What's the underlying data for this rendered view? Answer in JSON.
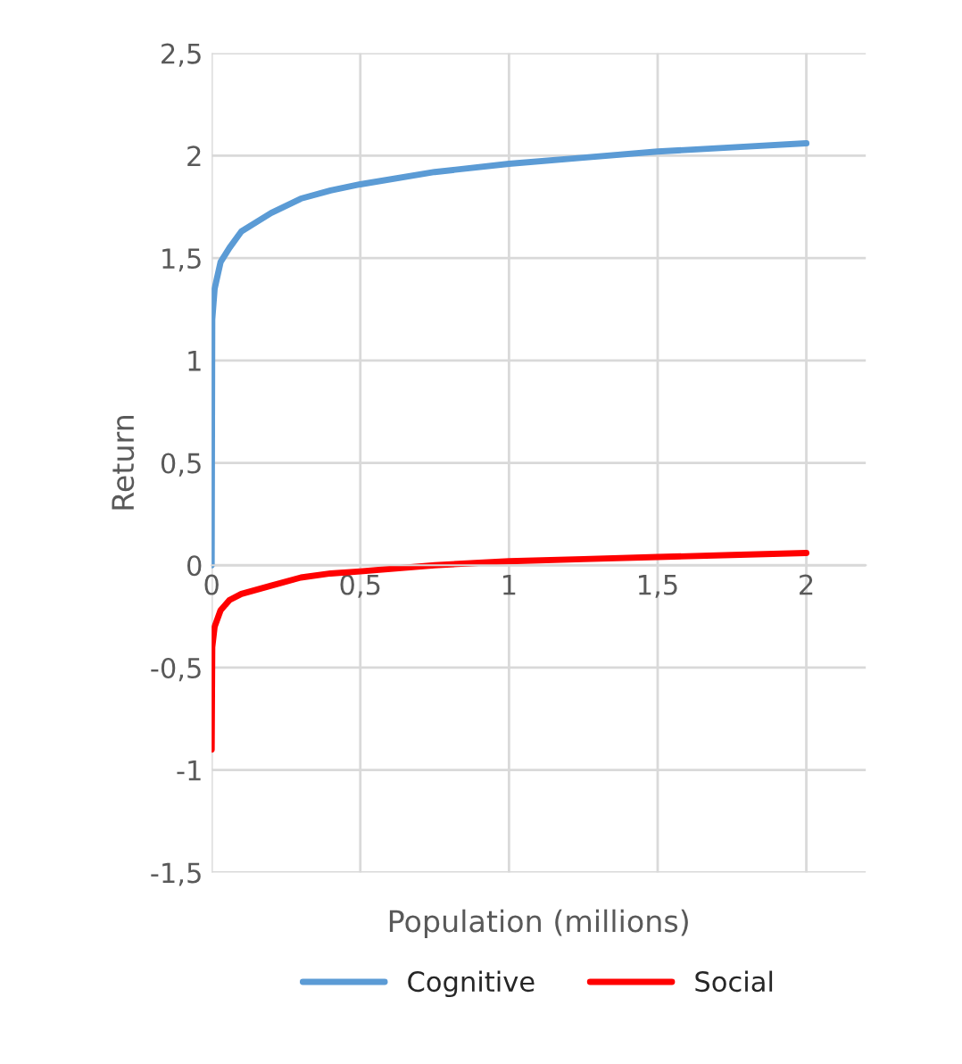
{
  "chart_data": {
    "type": "line",
    "xlabel": "Population (millions)",
    "ylabel": "Return",
    "xlim": [
      0,
      2.2
    ],
    "ylim": [
      -1.5,
      2.5
    ],
    "xticks": [
      {
        "value": 0,
        "label": "0"
      },
      {
        "value": 0.5,
        "label": "0,5"
      },
      {
        "value": 1,
        "label": "1"
      },
      {
        "value": 1.5,
        "label": "1,5"
      },
      {
        "value": 2,
        "label": "2"
      }
    ],
    "yticks": [
      {
        "value": -1.5,
        "label": "-1,5"
      },
      {
        "value": -1,
        "label": "-1"
      },
      {
        "value": -0.5,
        "label": "-0,5"
      },
      {
        "value": 0,
        "label": "0"
      },
      {
        "value": 0.5,
        "label": "0,5"
      },
      {
        "value": 1,
        "label": "1"
      },
      {
        "value": 1.5,
        "label": "1,5"
      },
      {
        "value": 2,
        "label": "2"
      },
      {
        "value": 2.5,
        "label": "2,5"
      }
    ],
    "grid": true,
    "legend": "bottom",
    "marker": "none",
    "line_style": "solid",
    "x": [
      0,
      0.002,
      0.01,
      0.03,
      0.06,
      0.1,
      0.2,
      0.3,
      0.4,
      0.5,
      0.75,
      1,
      1.25,
      1.5,
      1.75,
      2
    ],
    "series": [
      {
        "name": "Cognitive",
        "color": "#5b9bd5",
        "values": [
          0,
          1.2,
          1.35,
          1.48,
          1.55,
          1.63,
          1.72,
          1.79,
          1.83,
          1.86,
          1.92,
          1.96,
          1.99,
          2.02,
          2.04,
          2.06
        ]
      },
      {
        "name": "Social",
        "color": "#ff0000",
        "values": [
          -0.9,
          -0.4,
          -0.3,
          -0.22,
          -0.17,
          -0.14,
          -0.1,
          -0.06,
          -0.04,
          -0.03,
          0,
          0.02,
          0.03,
          0.04,
          0.05,
          0.06
        ]
      }
    ]
  }
}
